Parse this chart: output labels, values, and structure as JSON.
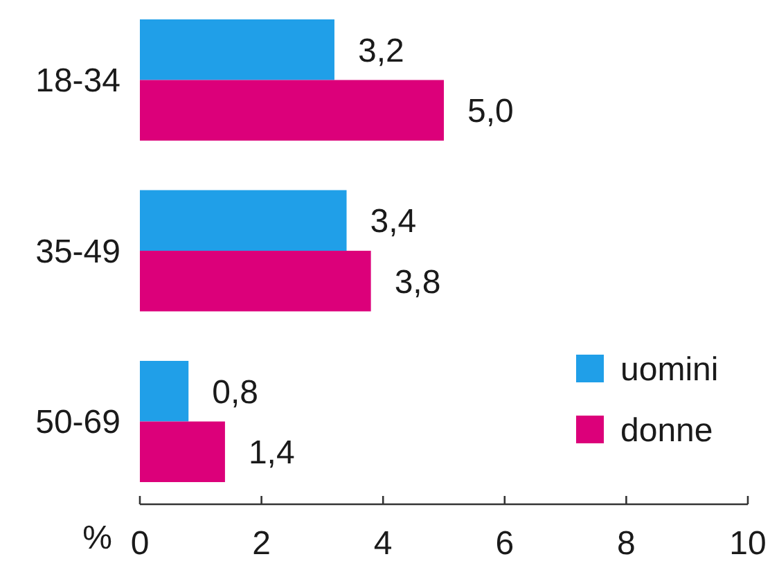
{
  "chart_data": {
    "type": "bar",
    "orientation": "horizontal",
    "xlabel": "%",
    "categories": [
      "18-34",
      "35-49",
      "50-69"
    ],
    "series": [
      {
        "name": "uomini",
        "color": "#209fe8",
        "values": [
          3.2,
          3.4,
          0.8
        ],
        "value_labels": [
          "3,2",
          "3,4",
          "0,8"
        ]
      },
      {
        "name": "donne",
        "color": "#dc007a",
        "values": [
          5.0,
          3.8,
          1.4
        ],
        "value_labels": [
          "5,0",
          "3,8",
          "1,4"
        ]
      }
    ],
    "xlim": [
      0,
      10
    ],
    "xticks": [
      0,
      2,
      4,
      6,
      8,
      10
    ],
    "grid": false,
    "legend": "right"
  }
}
